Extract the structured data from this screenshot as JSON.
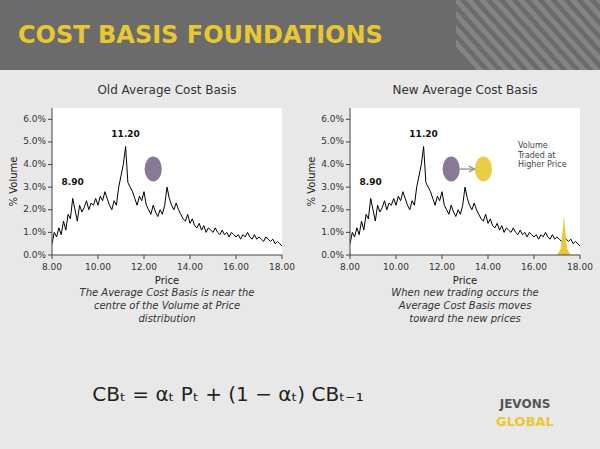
{
  "title": "COST BASIS FOUNDATIONS",
  "formula": "CBₜ = αₜ Pₜ + (1 − αₜ) CBₜ₋₁",
  "logo": [
    {
      "text": "JEVONS",
      "color": "#555555"
    },
    {
      "text": "GLOBAL",
      "color": "#E8C832"
    }
  ],
  "chart_data": [
    {
      "type": "line",
      "title": "Old Average Cost Basis",
      "caption": "The Average Cost Basis is near the\ncentre of the Volume at Price\ndistribution",
      "x_label": "Price",
      "y_label": "% Volume",
      "color": "#000000",
      "grid": false,
      "x": [
        8.0,
        8.1,
        8.2,
        8.3,
        8.4,
        8.5,
        8.6,
        8.7,
        8.8,
        8.9,
        9.0,
        9.1,
        9.2,
        9.3,
        9.4,
        9.5,
        9.6,
        9.7,
        9.8,
        9.9,
        10.0,
        10.1,
        10.2,
        10.3,
        10.4,
        10.5,
        10.6,
        10.7,
        10.8,
        10.9,
        11.0,
        11.1,
        11.2,
        11.3,
        11.4,
        11.5,
        11.6,
        11.7,
        11.8,
        11.9,
        12.0,
        12.1,
        12.2,
        12.3,
        12.4,
        12.5,
        12.6,
        12.7,
        12.8,
        12.9,
        13.0,
        13.1,
        13.2,
        13.3,
        13.4,
        13.5,
        13.6,
        13.7,
        13.8,
        13.9,
        14.0,
        14.1,
        14.2,
        14.3,
        14.4,
        14.5,
        14.6,
        14.7,
        14.8,
        14.9,
        15.0,
        15.1,
        15.2,
        15.3,
        15.4,
        15.5,
        15.6,
        15.7,
        15.8,
        15.9,
        16.0,
        16.1,
        16.2,
        16.3,
        16.4,
        16.5,
        16.6,
        16.7,
        16.8,
        16.9,
        17.0,
        17.1,
        17.2,
        17.3,
        17.4,
        17.5,
        17.6,
        17.7,
        17.8,
        17.9,
        18.0
      ],
      "values": [
        0.005,
        0.01,
        0.008,
        0.012,
        0.009,
        0.015,
        0.011,
        0.018,
        0.016,
        0.025,
        0.02,
        0.015,
        0.022,
        0.019,
        0.021,
        0.024,
        0.02,
        0.023,
        0.022,
        0.025,
        0.022,
        0.026,
        0.024,
        0.028,
        0.025,
        0.022,
        0.02,
        0.024,
        0.022,
        0.03,
        0.035,
        0.04,
        0.048,
        0.032,
        0.03,
        0.028,
        0.025,
        0.022,
        0.026,
        0.024,
        0.028,
        0.022,
        0.02,
        0.018,
        0.022,
        0.019,
        0.017,
        0.02,
        0.018,
        0.022,
        0.03,
        0.025,
        0.022,
        0.02,
        0.023,
        0.02,
        0.018,
        0.016,
        0.015,
        0.018,
        0.014,
        0.016,
        0.013,
        0.012,
        0.014,
        0.011,
        0.013,
        0.01,
        0.012,
        0.011,
        0.01,
        0.012,
        0.01,
        0.009,
        0.011,
        0.009,
        0.01,
        0.008,
        0.01,
        0.009,
        0.008,
        0.009,
        0.007,
        0.009,
        0.008,
        0.01,
        0.008,
        0.007,
        0.009,
        0.007,
        0.008,
        0.007,
        0.006,
        0.008,
        0.007,
        0.006,
        0.007,
        0.005,
        0.006,
        0.005,
        0.004
      ],
      "xlim": [
        8.0,
        18.0
      ],
      "xticks": [
        {
          "value": 8.0,
          "label": "8.00"
        },
        {
          "value": 10.0,
          "label": "10.00"
        },
        {
          "value": 12.0,
          "label": "12.00"
        },
        {
          "value": 14.0,
          "label": "14.00"
        },
        {
          "value": 16.0,
          "label": "16.00"
        },
        {
          "value": 18.0,
          "label": "18.00"
        }
      ],
      "ylim": [
        0.0,
        0.065
      ],
      "yticks": [
        {
          "value": 0.0,
          "label": "0.0%"
        },
        {
          "value": 0.01,
          "label": "1.0%"
        },
        {
          "value": 0.02,
          "label": "2.0%"
        },
        {
          "value": 0.03,
          "label": "3.0%"
        },
        {
          "value": 0.04,
          "label": "4.0%"
        },
        {
          "value": 0.05,
          "label": "5.0%"
        },
        {
          "value": 0.06,
          "label": "6.0%"
        }
      ],
      "annotations": [
        {
          "text": "8.90",
          "x": 8.9,
          "y": 0.031
        },
        {
          "text": "11.20",
          "x": 11.2,
          "y": 0.052
        }
      ],
      "markers": [
        {
          "x": 12.4,
          "y": 0.038,
          "color": "#7B6B8B"
        }
      ]
    },
    {
      "type": "line",
      "title": "New Average Cost Basis",
      "caption": "When new trading occurs the\nAverage Cost Basis moves\ntoward the new prices",
      "x_label": "Price",
      "y_label": "% Volume",
      "color": "#000000",
      "grid": false,
      "x": [
        8.0,
        8.1,
        8.2,
        8.3,
        8.4,
        8.5,
        8.6,
        8.7,
        8.8,
        8.9,
        9.0,
        9.1,
        9.2,
        9.3,
        9.4,
        9.5,
        9.6,
        9.7,
        9.8,
        9.9,
        10.0,
        10.1,
        10.2,
        10.3,
        10.4,
        10.5,
        10.6,
        10.7,
        10.8,
        10.9,
        11.0,
        11.1,
        11.2,
        11.3,
        11.4,
        11.5,
        11.6,
        11.7,
        11.8,
        11.9,
        12.0,
        12.1,
        12.2,
        12.3,
        12.4,
        12.5,
        12.6,
        12.7,
        12.8,
        12.9,
        13.0,
        13.1,
        13.2,
        13.3,
        13.4,
        13.5,
        13.6,
        13.7,
        13.8,
        13.9,
        14.0,
        14.1,
        14.2,
        14.3,
        14.4,
        14.5,
        14.6,
        14.7,
        14.8,
        14.9,
        15.0,
        15.1,
        15.2,
        15.3,
        15.4,
        15.5,
        15.6,
        15.7,
        15.8,
        15.9,
        16.0,
        16.1,
        16.2,
        16.3,
        16.4,
        16.5,
        16.6,
        16.7,
        16.8,
        16.9,
        17.0,
        17.1,
        17.2,
        17.3,
        17.4,
        17.5,
        17.6,
        17.7,
        17.8,
        17.9,
        18.0
      ],
      "values": [
        0.005,
        0.01,
        0.008,
        0.012,
        0.009,
        0.015,
        0.011,
        0.018,
        0.016,
        0.025,
        0.02,
        0.015,
        0.022,
        0.019,
        0.021,
        0.024,
        0.02,
        0.023,
        0.022,
        0.025,
        0.022,
        0.026,
        0.024,
        0.028,
        0.025,
        0.022,
        0.02,
        0.024,
        0.022,
        0.03,
        0.035,
        0.04,
        0.048,
        0.032,
        0.03,
        0.028,
        0.025,
        0.022,
        0.026,
        0.024,
        0.028,
        0.022,
        0.02,
        0.018,
        0.022,
        0.019,
        0.017,
        0.02,
        0.018,
        0.022,
        0.03,
        0.025,
        0.022,
        0.02,
        0.023,
        0.02,
        0.018,
        0.016,
        0.015,
        0.018,
        0.014,
        0.016,
        0.013,
        0.012,
        0.014,
        0.011,
        0.013,
        0.01,
        0.012,
        0.011,
        0.01,
        0.012,
        0.01,
        0.009,
        0.011,
        0.009,
        0.01,
        0.008,
        0.01,
        0.009,
        0.008,
        0.009,
        0.007,
        0.009,
        0.008,
        0.01,
        0.008,
        0.007,
        0.009,
        0.007,
        0.008,
        0.007,
        0.006,
        0.008,
        0.007,
        0.006,
        0.007,
        0.005,
        0.006,
        0.005,
        0.004
      ],
      "xlim": [
        8.0,
        18.0
      ],
      "xticks": [
        {
          "value": 8.0,
          "label": "8.00"
        },
        {
          "value": 10.0,
          "label": "10.00"
        },
        {
          "value": 12.0,
          "label": "12.00"
        },
        {
          "value": 14.0,
          "label": "14.00"
        },
        {
          "value": 16.0,
          "label": "16.00"
        },
        {
          "value": 18.0,
          "label": "18.00"
        }
      ],
      "ylim": [
        0.0,
        0.065
      ],
      "yticks": [
        {
          "value": 0.0,
          "label": "0.0%"
        },
        {
          "value": 0.01,
          "label": "1.0%"
        },
        {
          "value": 0.02,
          "label": "2.0%"
        },
        {
          "value": 0.03,
          "label": "3.0%"
        },
        {
          "value": 0.04,
          "label": "4.0%"
        },
        {
          "value": 0.05,
          "label": "5.0%"
        },
        {
          "value": 0.06,
          "label": "6.0%"
        }
      ],
      "annotations": [
        {
          "text": "8.90",
          "x": 8.9,
          "y": 0.031
        },
        {
          "text": "11.20",
          "x": 11.2,
          "y": 0.052
        }
      ],
      "markers": [
        {
          "x": 12.4,
          "y": 0.038,
          "color": "#7B6B8B"
        },
        {
          "x": 13.8,
          "y": 0.038,
          "color": "#E8C832"
        }
      ],
      "spike": {
        "x": 17.3,
        "height": 0.016,
        "color": "#E8C832"
      },
      "notes": [
        {
          "text": "Volume\nTraded at\nHigher Price",
          "x": 15.3,
          "y": 0.05
        }
      ]
    }
  ]
}
